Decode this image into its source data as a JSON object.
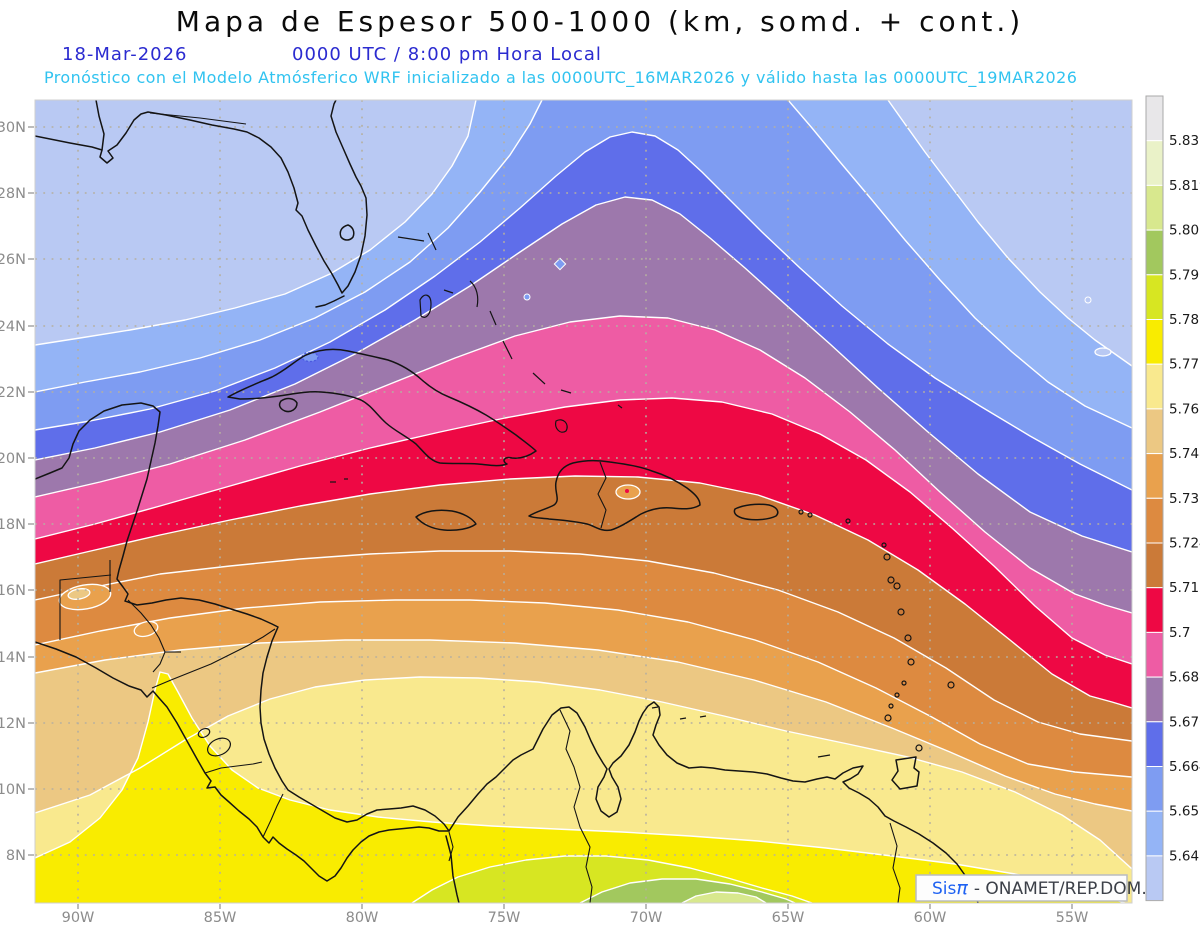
{
  "header": {
    "title": "Mapa de Espesor 500-1000 (km, somd. + cont.)",
    "date": "18-Mar-2026",
    "time": "0000 UTC / 8:00 pm Hora Local",
    "forecast": "Pronóstico con el Modelo Atmósferico WRF inicializado a las 0000UTC_16MAR2026 y válido hasta las 0000UTC_19MAR2026"
  },
  "credit": {
    "sis": "Sis",
    "pi": "π",
    "org": "- ONAMET/REP.DOM."
  },
  "axes": {
    "lat": [
      "30N",
      "28N",
      "26N",
      "24N",
      "22N",
      "20N",
      "18N",
      "16N",
      "14N",
      "12N",
      "10N",
      "8N"
    ],
    "lon": [
      "90W",
      "85W",
      "80W",
      "75W",
      "70W",
      "65W",
      "60W",
      "55W"
    ]
  },
  "colorbar": {
    "labels_top_down": [
      "5.831",
      "5.819",
      "5.807",
      "5.795",
      "5.783",
      "5.772",
      "5.76",
      "5.748",
      "5.736",
      "5.724",
      "5.712",
      "5.7",
      "5.688",
      "5.676",
      "5.664",
      "5.652",
      "5.64"
    ],
    "colors_bottom_up": [
      "#b9c9f3",
      "#94b4f6",
      "#7e9cf2",
      "#5f6eea",
      "#9d78ac",
      "#ee5ca4",
      "#ee0844",
      "#cb7a38",
      "#dd8a40",
      "#e9a14d",
      "#ecc883",
      "#f9e98e",
      "#f9ec00",
      "#d7e622",
      "#a2c85e",
      "#d8e88e",
      "#eaf2c8",
      "#e8e7e9"
    ]
  },
  "chart_data": {
    "type": "heatmap",
    "subtype": "filled-contour-weather-map",
    "title": "Mapa de Espesor 500-1000 (km, somd. + cont.)",
    "units": "km",
    "contour_levels": [
      5.64,
      5.652,
      5.664,
      5.676,
      5.688,
      5.7,
      5.712,
      5.724,
      5.736,
      5.748,
      5.76,
      5.772,
      5.783,
      5.795,
      5.807,
      5.819,
      5.831
    ],
    "palette_bottom_up": [
      "#b9c9f3",
      "#94b4f6",
      "#7e9cf2",
      "#5f6eea",
      "#9d78ac",
      "#ee5ca4",
      "#ee0844",
      "#cb7a38",
      "#dd8a40",
      "#e9a14d",
      "#ecc883",
      "#f9e98e",
      "#f9ec00",
      "#d7e622",
      "#a2c85e",
      "#d8e88e",
      "#eaf2c8",
      "#e8e7e9"
    ],
    "x_ticks": [
      "90W",
      "85W",
      "80W",
      "75W",
      "70W",
      "65W",
      "60W",
      "55W"
    ],
    "y_ticks": [
      "30N",
      "28N",
      "26N",
      "24N",
      "22N",
      "20N",
      "18N",
      "16N",
      "14N",
      "12N",
      "10N",
      "8N"
    ],
    "legend_position": "right colorbar",
    "grid": "dotted lat/lon graticule every 2 deg lat / 5 deg lon",
    "pattern": "Thickness increases from NE to S: <=5.64 (light blue) over Gulf of Mexico/Florida and far NE Atlantic; blue-violet-mauve-pink-red bands (5.64-5.712) sweep SW-NE across the Bahamas, Cuba and the Atlantic; orange/tan bands (5.712-5.76) cover the central Caribbean and Greater Antilles; pale yellow/yellow (5.76-5.783) over Central America and southern Caribbean; yellow-green and green (5.783-5.819) over Panama, Colombia and Venezuela."
  }
}
